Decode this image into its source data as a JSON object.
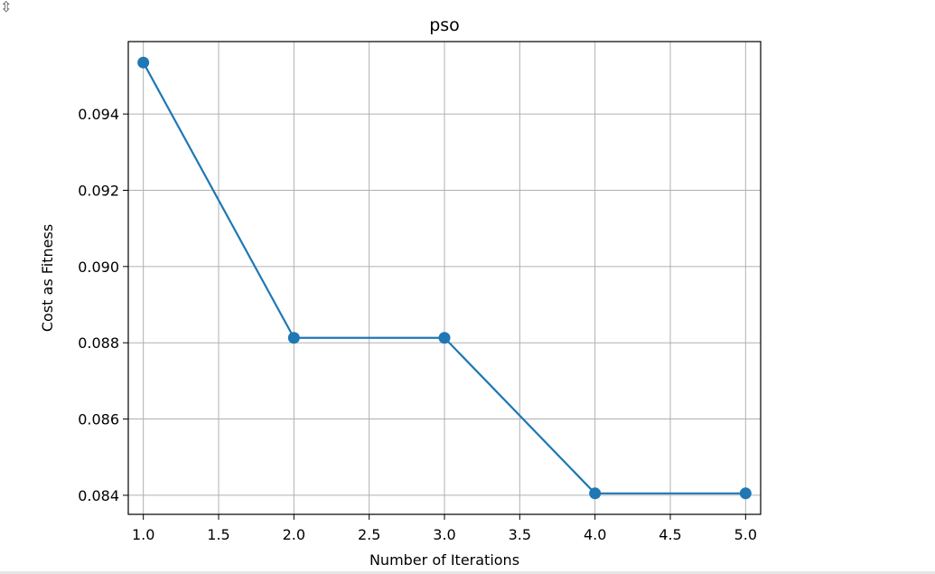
{
  "corner_glyph": "⇳",
  "chart_data": {
    "type": "line",
    "title": "pso",
    "xlabel": "Number of Iterations",
    "ylabel": "Cost as Fitness",
    "xlim": [
      0.9,
      5.1
    ],
    "ylim": [
      0.0835,
      0.0959
    ],
    "x_ticks": [
      1.0,
      1.5,
      2.0,
      2.5,
      3.0,
      3.5,
      4.0,
      4.5,
      5.0
    ],
    "x_tick_labels": [
      "1.0",
      "1.5",
      "2.0",
      "2.5",
      "3.0",
      "3.5",
      "4.0",
      "4.5",
      "5.0"
    ],
    "y_ticks": [
      0.084,
      0.086,
      0.088,
      0.09,
      0.092,
      0.094
    ],
    "y_tick_labels": [
      "0.084",
      "0.086",
      "0.088",
      "0.090",
      "0.092",
      "0.094"
    ],
    "grid": true,
    "series": [
      {
        "name": "pso",
        "color": "#1f77b4",
        "marker": "circle",
        "x": [
          1,
          2,
          3,
          4,
          5
        ],
        "y": [
          0.09535,
          0.08813,
          0.08813,
          0.08405,
          0.08405
        ]
      }
    ]
  }
}
